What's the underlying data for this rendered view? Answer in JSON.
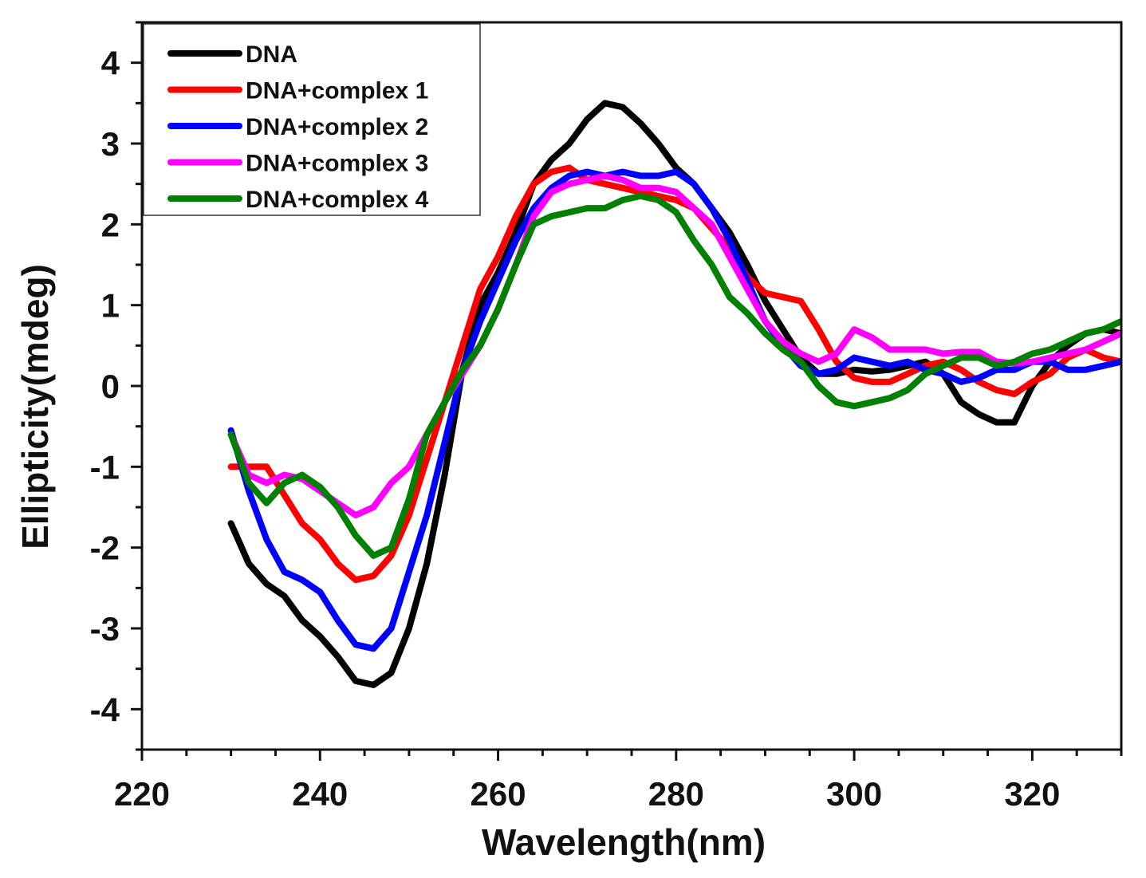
{
  "chart_data": {
    "type": "line",
    "title": "",
    "xlabel": "Wavelength(nm)",
    "ylabel": "Ellipticity(mdeg)",
    "xlim": [
      220,
      330
    ],
    "ylim": [
      -4.5,
      4.5
    ],
    "xticks": [
      220,
      240,
      260,
      280,
      300,
      320
    ],
    "yticks": [
      -4,
      -3,
      -2,
      -1,
      0,
      1,
      2,
      3,
      4
    ],
    "grid": false,
    "legend_position": "top-left",
    "series": [
      {
        "name": "DNA",
        "color": "#000000",
        "x": [
          230,
          232,
          234,
          236,
          238,
          240,
          242,
          244,
          246,
          248,
          250,
          252,
          254,
          256,
          258,
          260,
          262,
          264,
          266,
          268,
          270,
          272,
          274,
          276,
          278,
          280,
          282,
          284,
          286,
          288,
          290,
          292,
          294,
          296,
          298,
          300,
          302,
          304,
          306,
          308,
          310,
          312,
          314,
          316,
          318,
          320,
          322,
          324,
          326,
          328,
          330
        ],
        "y": [
          -1.7,
          -2.2,
          -2.45,
          -2.6,
          -2.9,
          -3.1,
          -3.35,
          -3.65,
          -3.7,
          -3.55,
          -3.0,
          -2.2,
          -1.1,
          0.2,
          1.0,
          1.4,
          1.9,
          2.5,
          2.8,
          3.0,
          3.3,
          3.5,
          3.45,
          3.25,
          3.0,
          2.7,
          2.5,
          2.2,
          1.9,
          1.5,
          1.05,
          0.7,
          0.35,
          0.15,
          0.15,
          0.2,
          0.18,
          0.2,
          0.25,
          0.3,
          0.15,
          -0.2,
          -0.35,
          -0.45,
          -0.45,
          0.0,
          0.3,
          0.5,
          0.65,
          0.7,
          0.65
        ]
      },
      {
        "name": "DNA+complex 1",
        "color": "#ff0000",
        "x": [
          230,
          232,
          234,
          236,
          238,
          240,
          242,
          244,
          246,
          248,
          250,
          252,
          254,
          256,
          258,
          260,
          262,
          264,
          266,
          268,
          270,
          272,
          274,
          276,
          278,
          280,
          282,
          284,
          286,
          288,
          290,
          292,
          294,
          296,
          298,
          300,
          302,
          304,
          306,
          308,
          310,
          312,
          314,
          316,
          318,
          320,
          322,
          324,
          326,
          328,
          330
        ],
        "y": [
          -1.0,
          -1.0,
          -1.0,
          -1.35,
          -1.7,
          -1.9,
          -2.2,
          -2.4,
          -2.35,
          -2.1,
          -1.6,
          -0.9,
          -0.2,
          0.5,
          1.2,
          1.6,
          2.1,
          2.5,
          2.65,
          2.7,
          2.55,
          2.5,
          2.45,
          2.4,
          2.35,
          2.3,
          2.2,
          1.95,
          1.7,
          1.35,
          1.15,
          1.1,
          1.05,
          0.7,
          0.3,
          0.1,
          0.05,
          0.05,
          0.15,
          0.25,
          0.3,
          0.2,
          0.05,
          -0.05,
          -0.1,
          0.05,
          0.15,
          0.35,
          0.45,
          0.35,
          0.3
        ]
      },
      {
        "name": "DNA+complex 2",
        "color": "#0000ff",
        "x": [
          230,
          232,
          234,
          236,
          238,
          240,
          242,
          244,
          246,
          248,
          250,
          252,
          254,
          256,
          258,
          260,
          262,
          264,
          266,
          268,
          270,
          272,
          274,
          276,
          278,
          280,
          282,
          284,
          286,
          288,
          290,
          292,
          294,
          296,
          298,
          300,
          302,
          304,
          306,
          308,
          310,
          312,
          314,
          316,
          318,
          320,
          322,
          324,
          326,
          328,
          330
        ],
        "y": [
          -0.55,
          -1.3,
          -1.9,
          -2.3,
          -2.4,
          -2.55,
          -2.9,
          -3.2,
          -3.25,
          -3.0,
          -2.3,
          -1.6,
          -0.7,
          0.2,
          0.8,
          1.3,
          1.8,
          2.2,
          2.45,
          2.6,
          2.65,
          2.6,
          2.65,
          2.6,
          2.6,
          2.65,
          2.5,
          2.2,
          1.8,
          1.3,
          0.8,
          0.5,
          0.25,
          0.15,
          0.2,
          0.35,
          0.3,
          0.25,
          0.3,
          0.2,
          0.15,
          0.05,
          0.1,
          0.2,
          0.2,
          0.3,
          0.3,
          0.2,
          0.2,
          0.25,
          0.3
        ]
      },
      {
        "name": "DNA+complex 3",
        "color": "#ff00ff",
        "x": [
          230,
          232,
          234,
          236,
          238,
          240,
          242,
          244,
          246,
          248,
          250,
          252,
          254,
          256,
          258,
          260,
          262,
          264,
          266,
          268,
          270,
          272,
          274,
          276,
          278,
          280,
          282,
          284,
          286,
          288,
          290,
          292,
          294,
          296,
          298,
          300,
          302,
          304,
          306,
          308,
          310,
          312,
          314,
          316,
          318,
          320,
          322,
          324,
          326,
          328,
          330
        ],
        "y": [
          -0.6,
          -1.1,
          -1.2,
          -1.1,
          -1.15,
          -1.3,
          -1.45,
          -1.6,
          -1.5,
          -1.2,
          -1.0,
          -0.6,
          -0.2,
          0.15,
          0.5,
          0.95,
          1.5,
          2.1,
          2.4,
          2.5,
          2.55,
          2.6,
          2.55,
          2.45,
          2.45,
          2.4,
          2.2,
          2.0,
          1.6,
          1.2,
          0.8,
          0.55,
          0.4,
          0.3,
          0.4,
          0.7,
          0.6,
          0.45,
          0.45,
          0.45,
          0.4,
          0.42,
          0.42,
          0.3,
          0.28,
          0.3,
          0.35,
          0.4,
          0.45,
          0.55,
          0.65
        ]
      },
      {
        "name": "DNA+complex 4",
        "color": "#008000",
        "x": [
          230,
          232,
          234,
          236,
          238,
          240,
          242,
          244,
          246,
          248,
          250,
          252,
          254,
          256,
          258,
          260,
          262,
          264,
          266,
          268,
          270,
          272,
          274,
          276,
          278,
          280,
          282,
          284,
          286,
          288,
          290,
          292,
          294,
          296,
          298,
          300,
          302,
          304,
          306,
          308,
          310,
          312,
          314,
          316,
          318,
          320,
          322,
          324,
          326,
          328,
          330
        ],
        "y": [
          -0.6,
          -1.2,
          -1.45,
          -1.2,
          -1.1,
          -1.25,
          -1.5,
          -1.85,
          -2.1,
          -2.0,
          -1.4,
          -0.6,
          -0.2,
          0.2,
          0.5,
          0.95,
          1.5,
          2.0,
          2.1,
          2.15,
          2.2,
          2.2,
          2.3,
          2.35,
          2.3,
          2.15,
          1.8,
          1.5,
          1.1,
          0.9,
          0.65,
          0.45,
          0.3,
          0.0,
          -0.2,
          -0.25,
          -0.2,
          -0.15,
          -0.05,
          0.15,
          0.25,
          0.35,
          0.35,
          0.25,
          0.3,
          0.4,
          0.45,
          0.55,
          0.65,
          0.7,
          0.8
        ]
      }
    ]
  }
}
